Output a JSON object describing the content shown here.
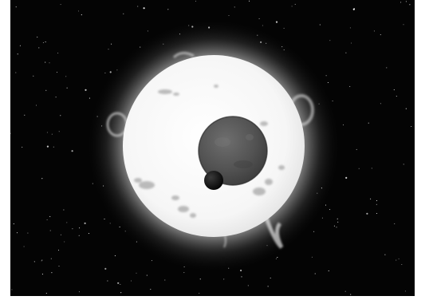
{
  "image": {
    "kind": "astronomical illustration",
    "palette": "grayscale",
    "colors": {
      "space": "#040404",
      "star_surface": "#f7f7f7",
      "corona": "#ffffff",
      "large_planet": "#4f4f4f",
      "small_moon": "#0b0b0b",
      "border": "#ffffff"
    },
    "subjects": [
      "bright-star",
      "large-planet-transit",
      "small-moon-transit",
      "starfield"
    ]
  }
}
